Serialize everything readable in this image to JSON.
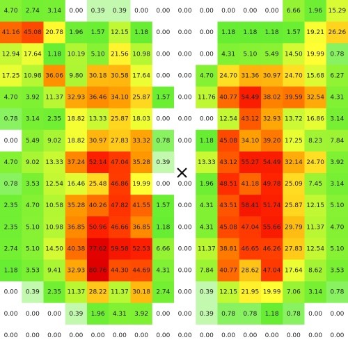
{
  "chart_data": {
    "type": "heatmap",
    "color_stops": [
      0,
      1,
      20,
      35,
      50,
      80
    ],
    "colors": [
      "#ffffff",
      "#66ee33",
      "#ffff33",
      "#ff9900",
      "#ff2200",
      "#e00000"
    ],
    "values": [
      [
        4.7,
        2.74,
        3.14,
        0.0,
        0.39,
        0.39,
        0.0,
        0.0,
        0.0,
        0.0,
        0.0,
        0.0,
        0.0,
        6.66,
        1.96,
        15.29
      ],
      [
        41.16,
        45.08,
        20.78,
        1.96,
        1.57,
        12.15,
        1.18,
        0.0,
        0.0,
        0.0,
        1.18,
        1.18,
        1.18,
        1.57,
        19.21,
        26.26
      ],
      [
        12.94,
        17.64,
        1.18,
        10.19,
        5.1,
        21.56,
        10.98,
        0.0,
        0.0,
        0.0,
        4.31,
        5.1,
        5.49,
        14.5,
        19.99,
        0.78
      ],
      [
        17.25,
        10.98,
        36.06,
        9.8,
        30.18,
        30.58,
        17.64,
        0.0,
        0.0,
        4.7,
        24.7,
        31.36,
        30.97,
        24.7,
        15.68,
        6.27
      ],
      [
        4.7,
        3.92,
        11.37,
        32.93,
        36.46,
        34.1,
        25.87,
        1.57,
        0.0,
        11.76,
        40.77,
        54.49,
        38.02,
        39.59,
        32.54,
        4.31
      ],
      [
        0.78,
        3.14,
        2.35,
        18.82,
        13.33,
        25.87,
        18.03,
        0.0,
        0.0,
        0.0,
        12.54,
        43.12,
        32.93,
        13.72,
        16.86,
        3.14
      ],
      [
        0.0,
        5.49,
        9.02,
        18.82,
        30.97,
        27.83,
        33.32,
        0.78,
        0.0,
        1.18,
        45.08,
        34.1,
        39.2,
        17.25,
        8.23,
        7.84
      ],
      [
        4.7,
        9.02,
        13.33,
        37.24,
        52.14,
        47.04,
        35.28,
        0.39,
        null,
        13.33,
        43.12,
        55.27,
        54.49,
        32.14,
        24.7,
        3.92
      ],
      [
        0.78,
        3.53,
        12.54,
        16.46,
        25.48,
        46.86,
        19.99,
        0.0,
        0.0,
        1.96,
        48.51,
        41.18,
        49.78,
        25.09,
        7.45,
        3.14
      ],
      [
        2.35,
        4.7,
        10.58,
        35.28,
        40.26,
        47.82,
        41.55,
        1.57,
        0.0,
        4.31,
        43.51,
        58.41,
        51.74,
        25.87,
        12.15,
        5.1
      ],
      [
        2.35,
        5.1,
        10.98,
        36.85,
        50.96,
        46.66,
        36.85,
        1.18,
        0.0,
        4.31,
        45.08,
        47.04,
        55.66,
        29.79,
        11.37,
        4.7
      ],
      [
        2.74,
        5.1,
        14.5,
        40.38,
        77.62,
        59.58,
        52.53,
        6.66,
        0.0,
        11.37,
        38.81,
        46.65,
        46.26,
        27.83,
        12.54,
        5.1
      ],
      [
        1.18,
        3.53,
        9.41,
        32.93,
        80.76,
        44.3,
        44.69,
        4.31,
        0.0,
        7.84,
        40.77,
        28.62,
        47.04,
        17.64,
        8.62,
        3.53
      ],
      [
        0.0,
        0.39,
        2.35,
        11.37,
        28.22,
        11.37,
        30.18,
        2.74,
        0.0,
        0.39,
        12.15,
        21.95,
        19.99,
        7.06,
        3.14,
        0.78
      ],
      [
        0.0,
        0.0,
        0.0,
        0.39,
        1.96,
        4.31,
        3.92,
        0.0,
        0.0,
        0.39,
        0.78,
        0.78,
        1.18,
        0.78,
        0.0,
        0.0
      ],
      [
        0.0,
        0.0,
        0.0,
        0.0,
        0.0,
        0.0,
        0.0,
        0.0,
        0.0,
        0.0,
        0.0,
        0.0,
        0.0,
        0.0,
        0.0,
        0.0
      ]
    ],
    "value_labels": [
      [
        "4.70",
        "2.74",
        "3.14",
        "0.00",
        "0.39",
        "0.39",
        "0.00",
        "0.00",
        "0.00",
        "0.00",
        "0.00",
        "0.00",
        "0.00",
        "6.66",
        "1.96",
        "15.29"
      ],
      [
        "41.16",
        "45.08",
        "20.78",
        "1.96",
        "1.57",
        "12.15",
        "1.18",
        "0.00",
        "0.00",
        "0.00",
        "1.18",
        "1.18",
        "1.18",
        "1.57",
        "19.21",
        "26.26"
      ],
      [
        "12.94",
        "17.64",
        "1.18",
        "10.19",
        "5.10",
        "21.56",
        "10.98",
        "0.00",
        "0.00",
        "0.00",
        "4.31",
        "5.10",
        "5.49",
        "14.50",
        "19.99",
        "0.78"
      ],
      [
        "17.25",
        "10.98",
        "36.06",
        "9.80",
        "30.18",
        "30.58",
        "17.64",
        "0.00",
        "0.00",
        "4.70",
        "24.70",
        "31.36",
        "30.97",
        "24.70",
        "15.68",
        "6.27"
      ],
      [
        "4.70",
        "3.92",
        "11.37",
        "32.93",
        "36.46",
        "34.10",
        "25.87",
        "1.57",
        "0.00",
        "11.76",
        "40.77",
        "54.49",
        "38.02",
        "39.59",
        "32.54",
        "4.31"
      ],
      [
        "0.78",
        "3.14",
        "2.35",
        "18.82",
        "13.33",
        "25.87",
        "18.03",
        "0.00",
        "0.00",
        "0.00",
        "12.54",
        "43.12",
        "32.93",
        "13.72",
        "16.86",
        "3.14"
      ],
      [
        "0.00",
        "5.49",
        "9.02",
        "18.82",
        "30.97",
        "27.83",
        "33.32",
        "0.78",
        "0.00",
        "1.18",
        "45.08",
        "34.10",
        "39.20",
        "17.25",
        "8.23",
        "7.84"
      ],
      [
        "4.70",
        "9.02",
        "13.33",
        "37.24",
        "52.14",
        "47.04",
        "35.28",
        "0.39",
        null,
        "13.33",
        "43.12",
        "55.27",
        "54.49",
        "32.14",
        "24.70",
        "3.92"
      ],
      [
        "0.78",
        "3.53",
        "12.54",
        "16.46",
        "25.48",
        "46.86",
        "19.99",
        "0.00",
        "0.00",
        "1.96",
        "48.51",
        "41.18",
        "49.78",
        "25.09",
        "7.45",
        "3.14"
      ],
      [
        "2.35",
        "4.70",
        "10.58",
        "35.28",
        "40.26",
        "47.82",
        "41.55",
        "1.57",
        "0.00",
        "4.31",
        "43.51",
        "58.41",
        "51.74",
        "25.87",
        "12.15",
        "5.10"
      ],
      [
        "2.35",
        "5.10",
        "10.98",
        "36.85",
        "50.96",
        "46.66",
        "36.85",
        "1.18",
        "0.00",
        "4.31",
        "45.08",
        "47.04",
        "55.66",
        "29.79",
        "11.37",
        "4.70"
      ],
      [
        "2.74",
        "5.10",
        "14.50",
        "40.38",
        "77.62",
        "59.58",
        "52.53",
        "6.66",
        "0.00",
        "11.37",
        "38.81",
        "46.65",
        "46.26",
        "27.83",
        "12.54",
        "5.10"
      ],
      [
        "1.18",
        "3.53",
        "9.41",
        "32.93",
        "80.76",
        "44.30",
        "44.69",
        "4.31",
        "0.00",
        "7.84",
        "40.77",
        "28.62",
        "47.04",
        "17.64",
        "8.62",
        "3.53"
      ],
      [
        "0.00",
        "0.39",
        "2.35",
        "11.37",
        "28.22",
        "11.37",
        "30.18",
        "2.74",
        "0.00",
        "0.39",
        "12.15",
        "21.95",
        "19.99",
        "7.06",
        "3.14",
        "0.78"
      ],
      [
        "0.00",
        "0.00",
        "0.00",
        "0.39",
        "1.96",
        "4.31",
        "3.92",
        "0.00",
        "0.00",
        "0.39",
        "0.78",
        "0.78",
        "1.18",
        "0.78",
        "0.00",
        "0.00"
      ],
      [
        "0.00",
        "0.00",
        "0.00",
        "0.00",
        "0.00",
        "0.00",
        "0.00",
        "0.00",
        "0.00",
        "0.00",
        "0.00",
        "0.00",
        "0.00",
        "0.00",
        "0.00",
        "0.00"
      ]
    ]
  }
}
